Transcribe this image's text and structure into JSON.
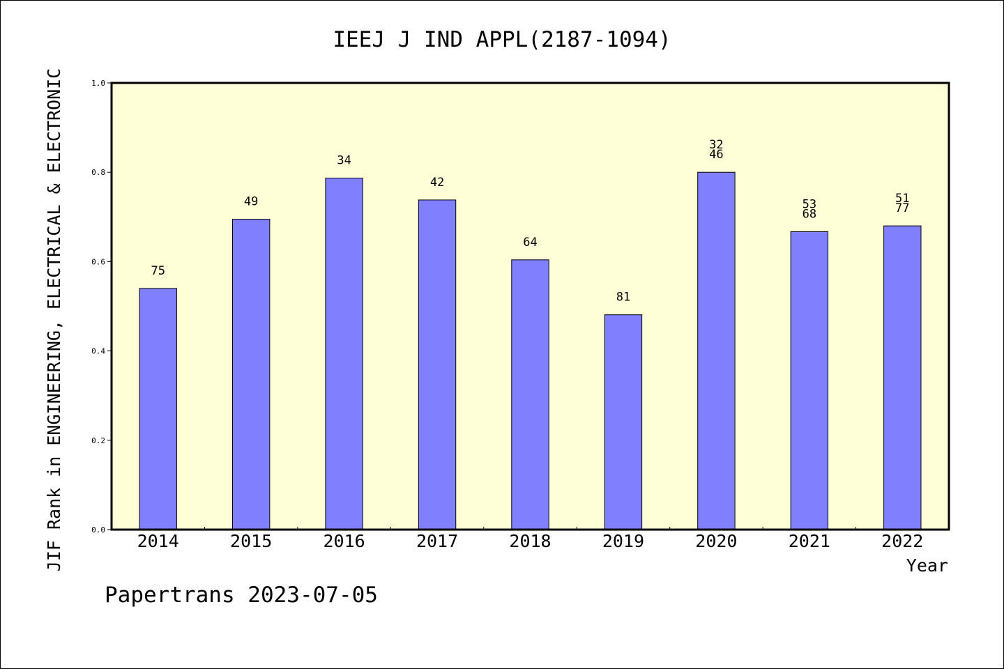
{
  "chart_data": {
    "type": "bar",
    "title": "IEEJ J IND APPL(2187-1094)",
    "xlabel": "Year",
    "ylabel": "JIF Rank in ENGINEERING, ELECTRICAL & ELECTRONIC",
    "ylim": [
      0.0,
      1.0
    ],
    "yticks": [
      "0.0",
      "0.2",
      "0.4",
      "0.6",
      "0.8",
      "1.0"
    ],
    "categories": [
      "2014",
      "2015",
      "2016",
      "2017",
      "2018",
      "2019",
      "2020",
      "2021",
      "2022"
    ],
    "values": [
      0.54,
      0.695,
      0.787,
      0.738,
      0.604,
      0.481,
      0.8,
      0.667,
      0.68
    ],
    "data_labels": [
      [
        "75"
      ],
      [
        "49"
      ],
      [
        "34"
      ],
      [
        "42"
      ],
      [
        "64"
      ],
      [
        "81"
      ],
      [
        "32",
        "46"
      ],
      [
        "53",
        "68"
      ],
      [
        "51",
        "77"
      ]
    ],
    "grid": false,
    "legend": "none",
    "colors": {
      "bar_fill": "#8080ff",
      "bar_stroke": "#000000",
      "plot_background": "#ffffd7",
      "page_background": "#ffffff"
    }
  },
  "footer": {
    "text": "Papertrans 2023-07-05"
  }
}
